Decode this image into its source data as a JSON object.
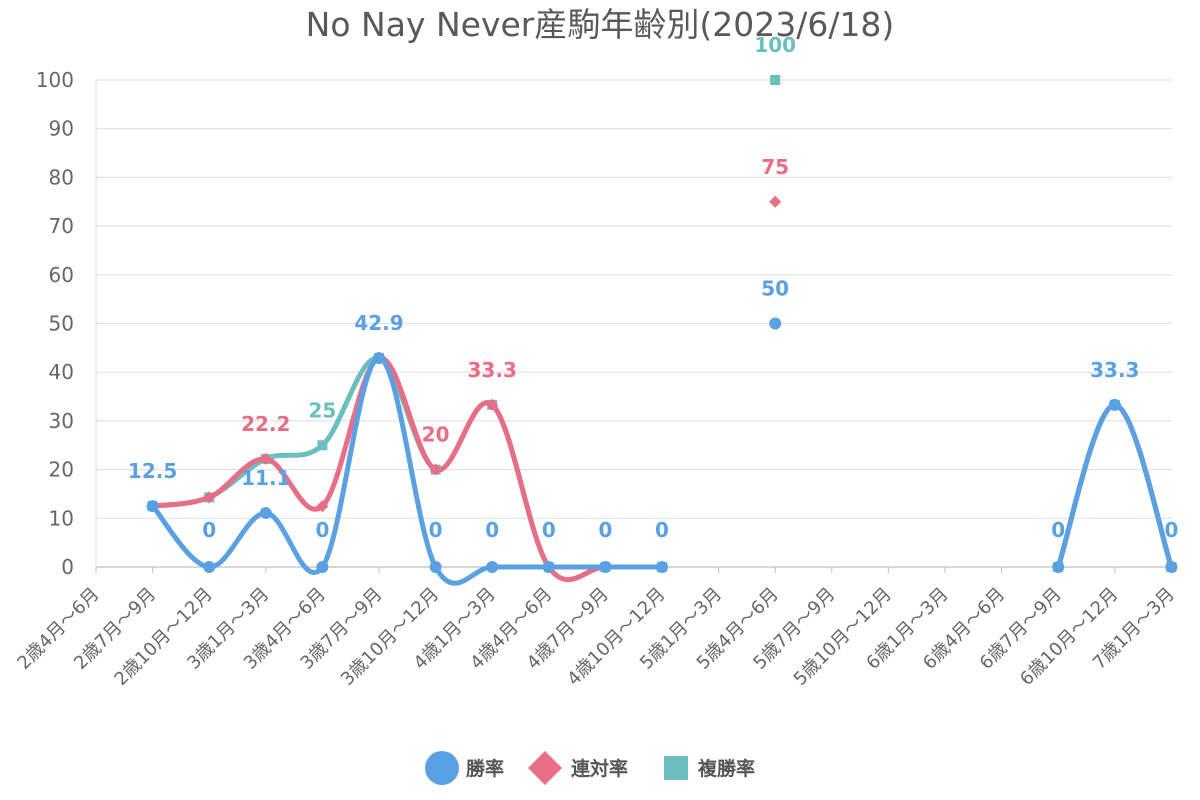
{
  "chart_data": {
    "type": "line",
    "title": "No Nay Never産駒年齢別(2023/6/18)",
    "categories": [
      "2歳4月～6月",
      "2歳7月～9月",
      "2歳10月～12月",
      "3歳1月～3月",
      "3歳4月～6月",
      "3歳7月～9月",
      "3歳10月～12月",
      "4歳1月～3月",
      "4歳4月～6月",
      "4歳7月～9月",
      "4歳10月～12月",
      "5歳1月～3月",
      "5歳4月～6月",
      "5歳7月～9月",
      "5歳10月～12月",
      "6歳1月～3月",
      "6歳4月～6月",
      "6歳7月～9月",
      "6歳10月～12月",
      "7歳1月～3月"
    ],
    "ylim": [
      0,
      100
    ],
    "yticks": [
      0,
      10,
      20,
      30,
      40,
      50,
      60,
      70,
      80,
      90,
      100
    ],
    "grid": true,
    "legend_position": "bottom",
    "series": [
      {
        "name": "複勝率",
        "color": "#6cbfbf",
        "marker": "square",
        "values": [
          null,
          12.5,
          14.3,
          22.2,
          25,
          42.9,
          20,
          33.3,
          0,
          0,
          0,
          null,
          100,
          null,
          null,
          null,
          null,
          0,
          33.3,
          0
        ],
        "labels": [
          null,
          null,
          null,
          null,
          "25",
          null,
          null,
          null,
          null,
          null,
          null,
          null,
          "100",
          null,
          null,
          null,
          null,
          null,
          null,
          null
        ]
      },
      {
        "name": "連対率",
        "color": "#e96d85",
        "marker": "diamond",
        "values": [
          null,
          12.5,
          14.3,
          22.2,
          12.5,
          42.9,
          20,
          33.3,
          0,
          0,
          0,
          null,
          75,
          null,
          null,
          null,
          null,
          0,
          33.3,
          0
        ],
        "labels": [
          null,
          null,
          null,
          "22.2",
          null,
          null,
          "20",
          "33.3",
          null,
          null,
          null,
          null,
          "75",
          null,
          null,
          null,
          null,
          null,
          null,
          null
        ]
      },
      {
        "name": "勝率",
        "color": "#5aa1e3",
        "marker": "circle",
        "values": [
          null,
          12.5,
          0,
          11.1,
          0,
          42.9,
          0,
          0,
          0,
          0,
          0,
          null,
          50,
          null,
          null,
          null,
          null,
          0,
          33.3,
          0
        ],
        "labels": [
          null,
          "12.5",
          "0",
          "11.1",
          "0",
          "42.9",
          "0",
          "0",
          "0",
          "0",
          "0",
          null,
          "50",
          null,
          null,
          null,
          null,
          "0",
          "33.3",
          "0"
        ]
      }
    ],
    "legend_order": [
      "勝率",
      "連対率",
      "複勝率"
    ]
  }
}
